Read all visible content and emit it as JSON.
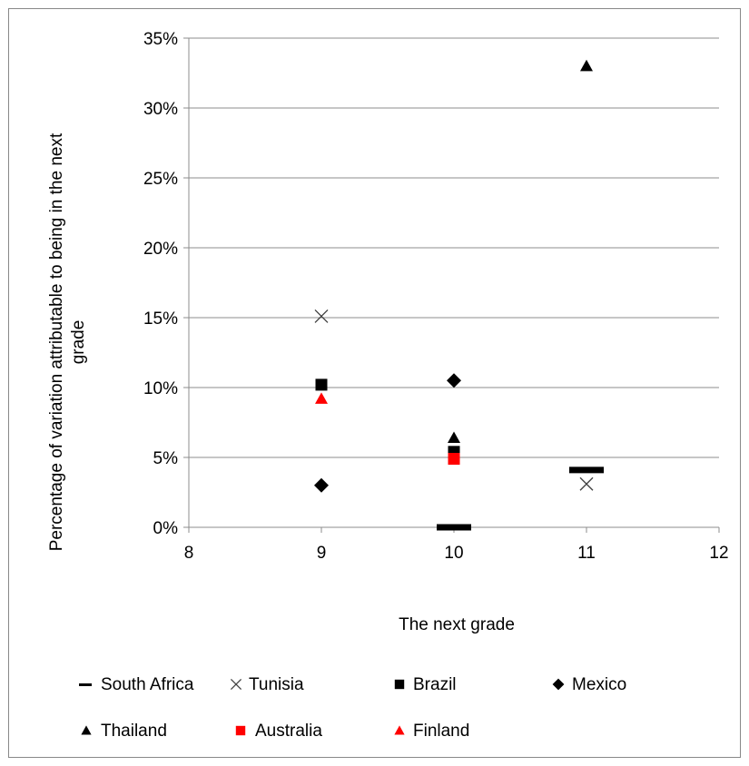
{
  "chart_data": {
    "type": "scatter",
    "xlabel": "The next grade",
    "ylabel": "Percentage of variation attributable to being in the next grade",
    "xlim": [
      8,
      12
    ],
    "ylim": [
      0,
      0.35
    ],
    "x_ticks": [
      "8",
      "9",
      "10",
      "11",
      "12"
    ],
    "y_ticks": [
      "0%",
      "5%",
      "10%",
      "15%",
      "20%",
      "25%",
      "30%",
      "35%"
    ],
    "grid": "horizontal",
    "legend_position": "bottom",
    "series": [
      {
        "name": "South Africa",
        "marker": "dash",
        "color": "#000000",
        "points": [
          {
            "x": 10,
            "y": 0.0
          },
          {
            "x": 11,
            "y": 0.041
          }
        ]
      },
      {
        "name": "Tunisia",
        "marker": "x",
        "color": "#404040",
        "points": [
          {
            "x": 9,
            "y": 0.151
          },
          {
            "x": 11,
            "y": 0.031
          }
        ]
      },
      {
        "name": "Brazil",
        "marker": "square",
        "color": "#000000",
        "points": [
          {
            "x": 9,
            "y": 0.102
          },
          {
            "x": 10,
            "y": 0.054
          }
        ]
      },
      {
        "name": "Mexico",
        "marker": "diamond",
        "color": "#000000",
        "points": [
          {
            "x": 9,
            "y": 0.03
          },
          {
            "x": 10,
            "y": 0.105
          }
        ]
      },
      {
        "name": "Thailand",
        "marker": "triangle",
        "color": "#000000",
        "points": [
          {
            "x": 10,
            "y": 0.064
          },
          {
            "x": 11,
            "y": 0.33
          }
        ]
      },
      {
        "name": "Australia",
        "marker": "square",
        "color": "#ff0000",
        "points": [
          {
            "x": 10,
            "y": 0.049
          }
        ]
      },
      {
        "name": "Finland",
        "marker": "triangle",
        "color": "#ff0000",
        "points": [
          {
            "x": 9,
            "y": 0.092
          }
        ]
      }
    ]
  }
}
